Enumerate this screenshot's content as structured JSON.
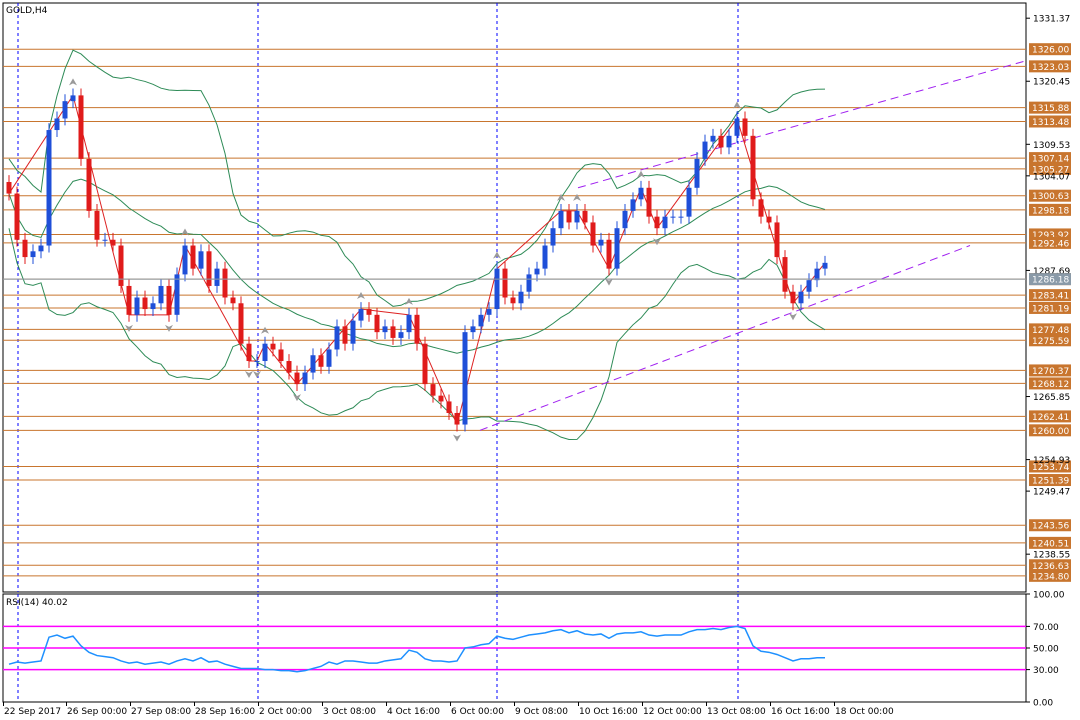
{
  "window": {
    "title": "GOLD,H4"
  },
  "chart_data": [
    {
      "type": "candlestick",
      "symbol": "GOLD",
      "timeframe": "H4",
      "title": "GOLD,H4",
      "ylim": [
        1232,
        1334
      ],
      "y_tick_labels": [
        "1331.37",
        "1320.45",
        "1309.53",
        "1304.07",
        "1287.69",
        "1265.85",
        "1254.93",
        "1249.47",
        "1238.55"
      ],
      "hline_labels": [
        "1326.00",
        "1323.03",
        "1315.88",
        "1313.48",
        "1307.14",
        "1305.27",
        "1300.63",
        "1298.18",
        "1293.92",
        "1292.46",
        "1286.18",
        "1283.41",
        "1281.19",
        "1277.48",
        "1275.59",
        "1270.37",
        "1268.12",
        "1262.41",
        "1260.00",
        "1253.74",
        "1251.39",
        "1243.56",
        "1240.51",
        "1236.63",
        "1234.80"
      ],
      "current_price": "1286.18",
      "x_tick_labels": [
        "22 Sep 2017",
        "26 Sep 00:00",
        "27 Sep 08:00",
        "28 Sep 16:00",
        "2 Oct 00:00",
        "3 Oct 08:00",
        "4 Oct 16:00",
        "6 Oct 00:00",
        "9 Oct 08:00",
        "10 Oct 16:00",
        "12 Oct 00:00",
        "13 Oct 08:00",
        "16 Oct 16:00",
        "18 Oct 00:00"
      ],
      "closes": [
        1301,
        1293,
        1290,
        1291,
        1292,
        1312,
        1314,
        1317,
        1318,
        1307,
        1298,
        1293,
        1293,
        1292,
        1285,
        1280,
        1283,
        1281,
        1282,
        1285,
        1280,
        1287,
        1292,
        1288,
        1291,
        1285,
        1288,
        1283,
        1282,
        1275,
        1272,
        1272,
        1275,
        1274,
        1272,
        1270,
        1268,
        1270,
        1273,
        1271,
        1274,
        1278,
        1275,
        1279,
        1281,
        1280,
        1277,
        1278,
        1276,
        1277,
        1280,
        1275,
        1268,
        1266,
        1265,
        1263,
        1261,
        1277,
        1278,
        1280,
        1281,
        1288,
        1283,
        1282,
        1284,
        1287,
        1288,
        1292,
        1295,
        1298,
        1296,
        1298,
        1296,
        1292,
        1293,
        1288,
        1295,
        1298,
        1300,
        1302,
        1297,
        1295,
        1297,
        1297,
        1297,
        1302,
        1307,
        1310,
        1311,
        1309,
        1311,
        1314,
        1311,
        1300,
        1297,
        1296,
        1290,
        1284,
        1282,
        1284,
        1286,
        1288,
        1289
      ],
      "series": [
        {
          "name": "RSI(14)",
          "value_label": "40.02",
          "ylim": [
            0,
            100
          ],
          "levels": [
            30,
            50,
            70
          ],
          "tick_labels": [
            "100.00",
            "70.00",
            "50.00",
            "30.00",
            "0.00"
          ],
          "values": [
            35,
            37,
            36,
            37,
            38,
            60,
            62,
            59,
            61,
            52,
            46,
            43,
            42,
            41,
            38,
            36,
            37,
            35,
            36,
            37,
            35,
            38,
            40,
            38,
            41,
            37,
            38,
            35,
            33,
            31,
            31,
            31,
            30,
            30,
            29,
            29,
            28,
            29,
            31,
            33,
            37,
            35,
            38,
            38,
            37,
            36,
            36,
            38,
            39,
            40,
            48,
            46,
            40,
            38,
            38,
            37,
            38,
            50,
            51,
            53,
            54,
            61,
            59,
            58,
            60,
            62,
            63,
            64,
            66,
            67,
            64,
            66,
            63,
            62,
            63,
            59,
            63,
            64,
            64,
            65,
            62,
            61,
            62,
            62,
            62,
            65,
            67,
            67,
            68,
            67,
            69,
            70,
            68,
            52,
            47,
            46,
            44,
            41,
            38,
            40,
            40,
            41,
            41
          ]
        },
        {
          "name": "Bollinger Bands",
          "values": []
        },
        {
          "name": "ZigZag",
          "values": []
        }
      ]
    }
  ]
}
